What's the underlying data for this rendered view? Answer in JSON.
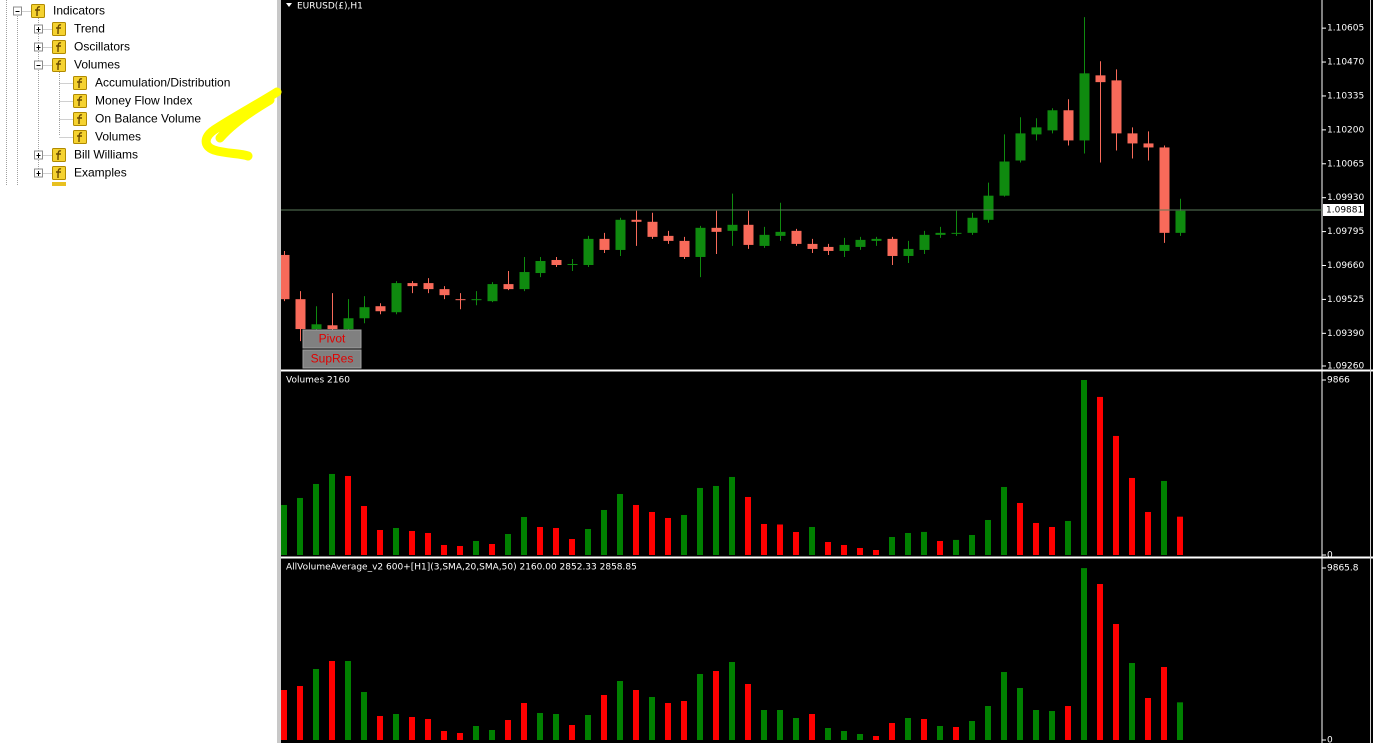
{
  "navigator": {
    "items": [
      {
        "label": "Indicators"
      },
      {
        "label": "Trend"
      },
      {
        "label": "Oscillators"
      },
      {
        "label": "Volumes"
      },
      {
        "label": "Accumulation/Distribution"
      },
      {
        "label": "Money Flow Index"
      },
      {
        "label": "On Balance Volume"
      },
      {
        "label": "Volumes"
      },
      {
        "label": "Bill Williams"
      },
      {
        "label": "Examples"
      }
    ]
  },
  "buttons": [
    "Pivot",
    "SupRes"
  ],
  "chart_data": [
    {
      "type": "candlestick",
      "title": "EURUSD(£),H1",
      "up_color": "#0f8a0f",
      "down_color": "#f86a5a",
      "ylim": [
        1.09248,
        1.10717
      ],
      "yticks": [
        1.10605,
        {
          "value": 1.1047,
          "label": "1.10470"
        },
        1.10335,
        {
          "value": 1.102,
          "label": "1.10200"
        },
        1.10065,
        {
          "value": 1.0993,
          "label": "1.09930"
        },
        1.09795,
        {
          "value": 1.0966,
          "label": "1.09660"
        },
        1.09525,
        {
          "value": 1.0939,
          "label": "1.09390"
        },
        {
          "value": 1.0926,
          "label": "1.09260"
        }
      ],
      "current_price": 1.09881,
      "ohlc": [
        [
          1.09702,
          1.09718,
          1.09518,
          1.09526
        ],
        [
          1.09526,
          1.09558,
          1.09359,
          1.09407
        ],
        [
          1.09407,
          1.09498,
          1.09379,
          1.09426
        ],
        [
          1.09422,
          1.0955,
          1.09383,
          1.09407
        ],
        [
          1.09407,
          1.09526,
          1.09387,
          1.0945
        ],
        [
          1.0945,
          1.09538,
          1.0943,
          1.09494
        ],
        [
          1.09498,
          1.0951,
          1.09466,
          1.09478
        ],
        [
          1.09474,
          1.09598,
          1.09466,
          1.0959
        ],
        [
          1.0959,
          1.09598,
          1.0955,
          1.09578
        ],
        [
          1.0959,
          1.0961,
          1.0955,
          1.09566
        ],
        [
          1.09566,
          1.09578,
          1.09526,
          1.09542
        ],
        [
          1.09526,
          1.0955,
          1.09486,
          1.09522
        ],
        [
          1.09522,
          1.09558,
          1.09502,
          1.09526
        ],
        [
          1.09518,
          1.09594,
          1.09514,
          1.09586
        ],
        [
          1.09586,
          1.09638,
          1.09562,
          1.09566
        ],
        [
          1.09566,
          1.09694,
          1.09558,
          1.09634
        ],
        [
          1.0963,
          1.09694,
          1.09614,
          1.09678
        ],
        [
          1.09682,
          1.09694,
          1.09654,
          1.09662
        ],
        [
          1.09662,
          1.09686,
          1.09638,
          1.09666
        ],
        [
          1.09662,
          1.09778,
          1.09654,
          1.09766
        ],
        [
          1.09766,
          1.0979,
          1.0971,
          1.09722
        ],
        [
          1.09722,
          1.0985,
          1.09698,
          1.09842
        ],
        [
          1.09842,
          1.09878,
          1.09738,
          1.09834
        ],
        [
          1.09834,
          1.0987,
          1.09766,
          1.09774
        ],
        [
          1.09778,
          1.09798,
          1.09746,
          1.09758
        ],
        [
          1.09758,
          1.09774,
          1.09686,
          1.09694
        ],
        [
          1.09694,
          1.09818,
          1.09614,
          1.0981
        ],
        [
          1.0981,
          1.09878,
          1.09706,
          1.09794
        ],
        [
          1.09798,
          1.09946,
          1.09738,
          1.09822
        ],
        [
          1.09822,
          1.09878,
          1.09726,
          1.09742
        ],
        [
          1.09738,
          1.09814,
          1.0973,
          1.09782
        ],
        [
          1.09778,
          1.0991,
          1.09758,
          1.09794
        ],
        [
          1.09798,
          1.09806,
          1.09738,
          1.09746
        ],
        [
          1.09746,
          1.09766,
          1.0971,
          1.09726
        ],
        [
          1.09734,
          1.09746,
          1.09702,
          1.09718
        ],
        [
          1.09718,
          1.0977,
          1.09694,
          1.09742
        ],
        [
          1.09734,
          1.09774,
          1.09722,
          1.09762
        ],
        [
          1.09758,
          1.09774,
          1.09738,
          1.09766
        ],
        [
          1.09766,
          1.09774,
          1.09662,
          1.09698
        ],
        [
          1.09698,
          1.09758,
          1.0967,
          1.09726
        ],
        [
          1.09722,
          1.09798,
          1.09706,
          1.09782
        ],
        [
          1.09782,
          1.09814,
          1.0977,
          1.0979
        ],
        [
          1.09786,
          1.09878,
          1.09778,
          1.0979
        ],
        [
          1.0979,
          1.0987,
          1.09782,
          1.0985
        ],
        [
          1.09842,
          1.0999,
          1.0983,
          1.09938
        ],
        [
          1.09938,
          1.10182,
          1.09934,
          1.10074
        ],
        [
          1.10078,
          1.1025,
          1.1007,
          1.10186
        ],
        [
          1.10182,
          1.10246,
          1.10158,
          1.1021
        ],
        [
          1.10198,
          1.10286,
          1.10186,
          1.10278
        ],
        [
          1.10278,
          1.10322,
          1.10138,
          1.10158
        ],
        [
          1.10158,
          1.10649,
          1.10106,
          1.10425
        ],
        [
          1.10417,
          1.10473,
          1.1007,
          1.1039
        ],
        [
          1.10397,
          1.10441,
          1.10118,
          1.10186
        ],
        [
          1.10186,
          1.1021,
          1.10086,
          1.10146
        ],
        [
          1.10146,
          1.10194,
          1.10078,
          1.1013
        ],
        [
          1.1013,
          1.10138,
          1.0975,
          1.0979
        ],
        [
          1.0979,
          1.09926,
          1.09778,
          1.09878
        ]
      ]
    },
    {
      "type": "bar",
      "title": "Volumes 2160",
      "ylim": [
        0,
        9866
      ],
      "yticks": [
        0,
        9866
      ],
      "values": [
        2820,
        3215,
        4004,
        4568,
        4455,
        2763,
        1410,
        1523,
        1354,
        1241,
        564,
        508,
        790,
        620,
        1184,
        2143,
        1579,
        1523,
        902,
        1466,
        2538,
        3440,
        2820,
        2425,
        2087,
        2256,
        3779,
        3892,
        4399,
        3271,
        1748,
        1720,
        1297,
        1579,
        733,
        564,
        395,
        282,
        1015,
        1241,
        1300,
        790,
        850,
        1128,
        1974,
        3835,
        2933,
        1805,
        1579,
        1918,
        9866,
        8911,
        6712,
        4343,
        2425,
        4174,
        2160
      ],
      "colors": [
        "#008000",
        "#008000",
        "#008000",
        "#008000",
        "#ff0000",
        "#ff0000",
        "#ff0000",
        "#008000",
        "#ff0000",
        "#ff0000",
        "#ff0000",
        "#ff0000",
        "#008000",
        "#ff0000",
        "#008000",
        "#008000",
        "#ff0000",
        "#ff0000",
        "#ff0000",
        "#008000",
        "#008000",
        "#008000",
        "#ff0000",
        "#ff0000",
        "#ff0000",
        "#008000",
        "#008000",
        "#008000",
        "#008000",
        "#ff0000",
        "#ff0000",
        "#ff0000",
        "#ff0000",
        "#008000",
        "#ff0000",
        "#ff0000",
        "#ff0000",
        "#ff0000",
        "#008000",
        "#008000",
        "#008000",
        "#ff0000",
        "#008000",
        "#008000",
        "#008000",
        "#008000",
        "#ff0000",
        "#ff0000",
        "#ff0000",
        "#008000",
        "#008000",
        "#ff0000",
        "#ff0000",
        "#ff0000",
        "#ff0000",
        "#008000",
        "#ff0000"
      ]
    },
    {
      "type": "bar",
      "title": "AllVolumeAverage_v2 600+[H1](3,SMA,20,SMA,50) 2160.00 2852.33 2858.85",
      "ylim": [
        0,
        9865.8
      ],
      "yticks": [
        0,
        9865.8
      ],
      "values": [
        2868,
        3097,
        4073,
        4531,
        4531,
        2753,
        1377,
        1491,
        1319,
        1205,
        516,
        402,
        803,
        574,
        1147,
        2122,
        1549,
        1491,
        860,
        1434,
        2581,
        3384,
        2868,
        2466,
        2122,
        2237,
        3786,
        3958,
        4474,
        3212,
        1721,
        1721,
        1262,
        1491,
        688,
        516,
        344,
        229,
        975,
        1262,
        1205,
        803,
        746,
        1090,
        1950,
        3900,
        2983,
        1721,
        1663,
        1950,
        9860,
        8948,
        6654,
        4417,
        2409,
        4187,
        2160
      ],
      "colors": [
        "#ff0000",
        "#ff0000",
        "#008000",
        "#ff0000",
        "#008000",
        "#008000",
        "#ff0000",
        "#008000",
        "#ff0000",
        "#ff0000",
        "#ff0000",
        "#ff0000",
        "#008000",
        "#008000",
        "#ff0000",
        "#ff0000",
        "#008000",
        "#008000",
        "#ff0000",
        "#008000",
        "#ff0000",
        "#008000",
        "#ff0000",
        "#008000",
        "#ff0000",
        "#ff0000",
        "#008000",
        "#ff0000",
        "#008000",
        "#ff0000",
        "#008000",
        "#008000",
        "#008000",
        "#ff0000",
        "#008000",
        "#008000",
        "#008000",
        "#ff0000",
        "#ff0000",
        "#008000",
        "#ff0000",
        "#008000",
        "#ff0000",
        "#008000",
        "#008000",
        "#008000",
        "#008000",
        "#008000",
        "#008000",
        "#ff0000",
        "#008000",
        "#ff0000",
        "#ff0000",
        "#008000",
        "#ff0000",
        "#ff0000",
        "#008000"
      ]
    }
  ]
}
